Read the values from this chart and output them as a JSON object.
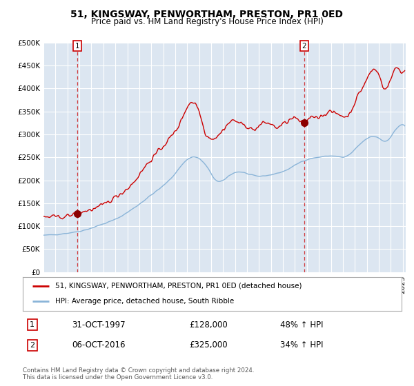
{
  "title": "51, KINGSWAY, PENWORTHAM, PRESTON, PR1 0ED",
  "subtitle": "Price paid vs. HM Land Registry's House Price Index (HPI)",
  "hpi_label": "HPI: Average price, detached house, South Ribble",
  "property_label": "51, KINGSWAY, PENWORTHAM, PRESTON, PR1 0ED (detached house)",
  "sale1_date_str": "31-OCT-1997",
  "sale1_price": 128000,
  "sale1_label": "48% ↑ HPI",
  "sale2_date_str": "06-OCT-2016",
  "sale2_price": 325000,
  "sale2_label": "34% ↑ HPI",
  "hpi_color": "#8ab4d8",
  "property_color": "#cc0000",
  "marker_color": "#8b0000",
  "background_color": "#dce6f1",
  "grid_color": "#ffffff",
  "ylim": [
    0,
    500000
  ],
  "yticks": [
    0,
    50000,
    100000,
    150000,
    200000,
    250000,
    300000,
    350000,
    400000,
    450000,
    500000
  ],
  "footnote_line1": "Contains HM Land Registry data © Crown copyright and database right 2024.",
  "footnote_line2": "This data is licensed under the Open Government Licence v3.0."
}
